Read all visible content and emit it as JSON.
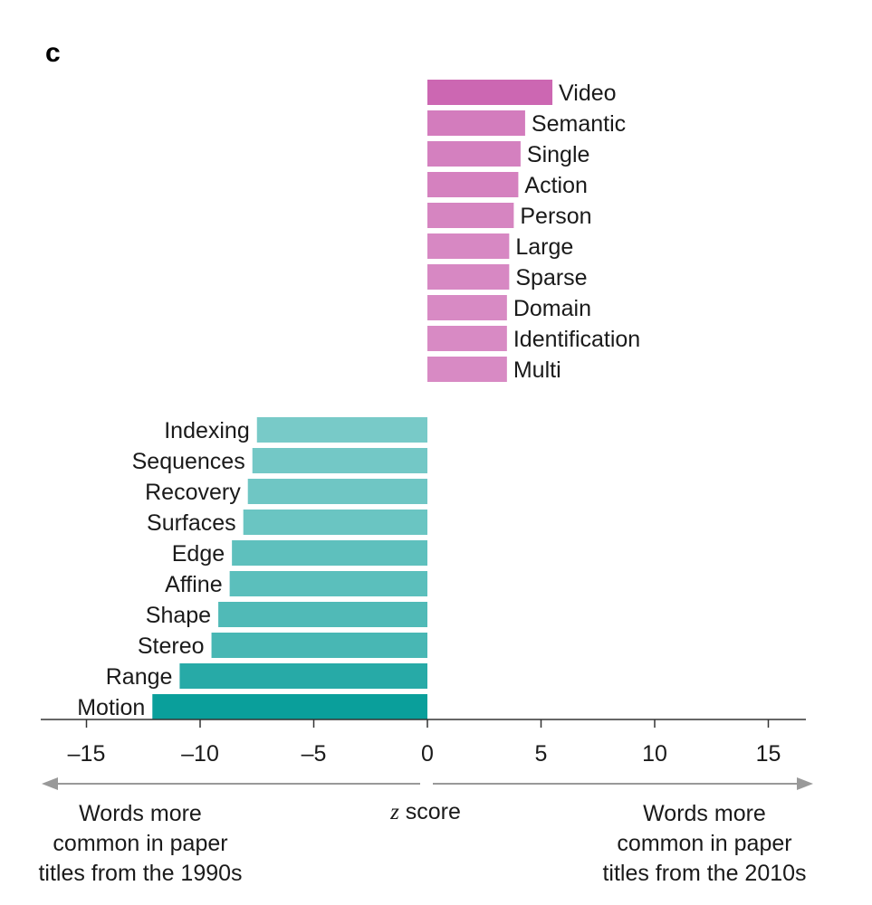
{
  "panel_label": "c",
  "chart_data": {
    "type": "bar",
    "orientation": "horizontal",
    "xlabel_var": "z",
    "xlabel_rest": " score",
    "xlim": [
      -17,
      16.7
    ],
    "xticks": [
      -15,
      -10,
      -5,
      0,
      5,
      10,
      15
    ],
    "xtick_labels": [
      "–15",
      "–10",
      "–5",
      "0",
      "5",
      "10",
      "15"
    ],
    "positive": {
      "color": "#c95fae",
      "categories": [
        "Video",
        "Semantic",
        "Single",
        "Action",
        "Person",
        "Large",
        "Sparse",
        "Domain",
        "Identification",
        "Multi"
      ],
      "values": [
        5.5,
        4.3,
        4.1,
        4.0,
        3.8,
        3.6,
        3.6,
        3.5,
        3.5,
        3.5
      ]
    },
    "negative": {
      "color": "#0a9f9b",
      "categories": [
        "Indexing",
        "Sequences",
        "Recovery",
        "Surfaces",
        "Edge",
        "Affine",
        "Shape",
        "Stereo",
        "Range",
        "Motion"
      ],
      "values": [
        -7.5,
        -7.7,
        -7.9,
        -8.1,
        -8.6,
        -8.7,
        -9.2,
        -9.5,
        -10.9,
        -12.1
      ]
    },
    "left_note": [
      "Words more",
      "common in paper",
      "titles from the 1990s"
    ],
    "right_note": [
      "Words more",
      "common in paper",
      "titles from the 2010s"
    ]
  }
}
